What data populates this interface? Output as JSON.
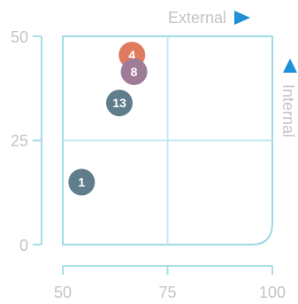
{
  "chart_data": {
    "type": "scatter",
    "title": "",
    "xlabel": "External",
    "ylabel": "Internal",
    "xlim": [
      50,
      100
    ],
    "ylim": [
      0,
      50
    ],
    "x_ticks": [
      "50",
      "75",
      "100"
    ],
    "y_ticks": [
      "0",
      "25",
      "50"
    ],
    "grid": "center-crosshair",
    "points": [
      {
        "label": "1",
        "x": 54.5,
        "y": 15,
        "color": "#607d8b"
      },
      {
        "label": "13",
        "x": 63.5,
        "y": 34,
        "color": "#607d8b"
      },
      {
        "label": "4",
        "x": 66.5,
        "y": 45.5,
        "color": "#e07b5f"
      },
      {
        "label": "8",
        "x": 67,
        "y": 41.5,
        "color": "#9e7b96"
      }
    ],
    "colors": {
      "axis": "#a6dde6",
      "frame": "#9fdbe5",
      "crosshair": "#c4eaf0",
      "tick_text": "#c4c4c4",
      "arrow": "#1e90d6"
    }
  }
}
